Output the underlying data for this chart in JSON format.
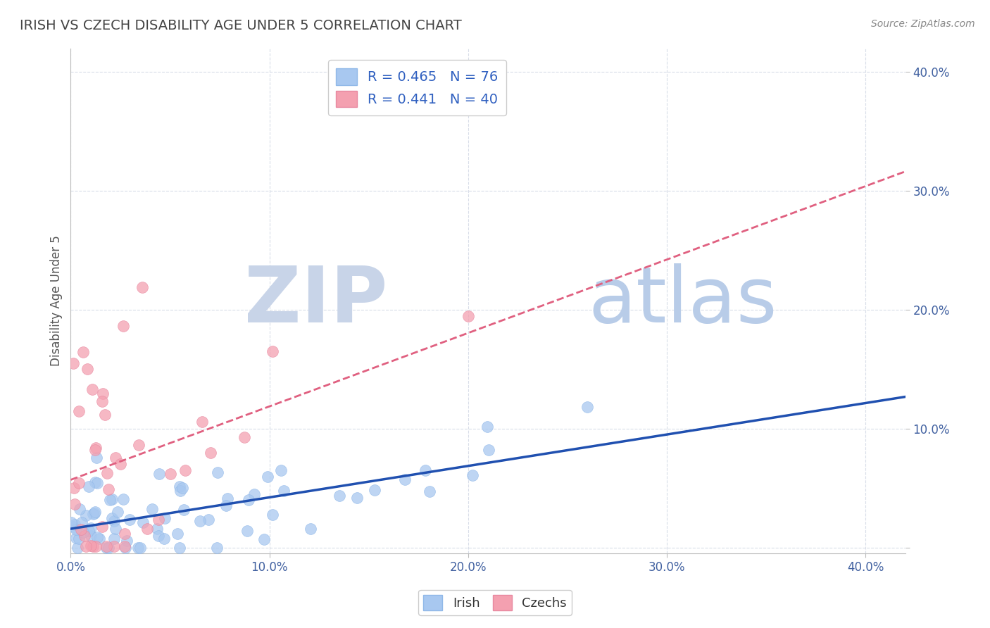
{
  "title": "IRISH VS CZECH DISABILITY AGE UNDER 5 CORRELATION CHART",
  "source": "Source: ZipAtlas.com",
  "ylabel": "Disability Age Under 5",
  "xlim": [
    0.0,
    0.42
  ],
  "ylim": [
    -0.005,
    0.42
  ],
  "xticks": [
    0.0,
    0.1,
    0.2,
    0.3,
    0.4
  ],
  "yticks": [
    0.0,
    0.1,
    0.2,
    0.3,
    0.4
  ],
  "xticklabels": [
    "0.0%",
    "10.0%",
    "20.0%",
    "30.0%",
    "40.0%"
  ],
  "yticklabels": [
    "",
    "10.0%",
    "20.0%",
    "30.0%",
    "40.0%"
  ],
  "irish_color": "#a8c8f0",
  "czech_color": "#f4a0b0",
  "irish_line_color": "#2050b0",
  "czech_line_color": "#e06080",
  "legend_irish_label": "R = 0.465   N = 76",
  "legend_czech_label": "R = 0.441   N = 40",
  "watermark_zip": "ZIP",
  "watermark_atlas": "atlas",
  "watermark_zip_color": "#c8d4e8",
  "watermark_atlas_color": "#b8cce8",
  "background_color": "#ffffff",
  "grid_color": "#d8dde8",
  "title_color": "#444444",
  "source_color": "#888888",
  "tick_color": "#4060a0",
  "ylabel_color": "#555555",
  "legend_text_color": "#3060c0",
  "bottom_legend_color": "#333333"
}
